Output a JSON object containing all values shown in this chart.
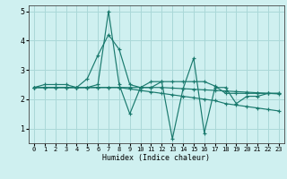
{
  "xlabel": "Humidex (Indice chaleur)",
  "bg_color": "#cff0f0",
  "grid_color": "#aad8d8",
  "line_color": "#1a7a6e",
  "xlim": [
    -0.5,
    23.5
  ],
  "ylim": [
    0.5,
    5.2
  ],
  "xticks": [
    0,
    1,
    2,
    3,
    4,
    5,
    6,
    7,
    8,
    9,
    10,
    11,
    12,
    13,
    14,
    15,
    16,
    17,
    18,
    19,
    20,
    21,
    22,
    23
  ],
  "yticks": [
    1,
    2,
    3,
    4,
    5
  ],
  "lines": [
    [
      2.4,
      2.5,
      2.5,
      2.5,
      2.4,
      2.7,
      3.5,
      4.2,
      3.7,
      2.5,
      2.4,
      2.4,
      2.6,
      0.65,
      2.35,
      3.4,
      0.85,
      2.4,
      2.4,
      1.85,
      2.1,
      2.1,
      2.2,
      2.2
    ],
    [
      2.4,
      2.4,
      2.4,
      2.4,
      2.4,
      2.4,
      2.5,
      5.0,
      2.5,
      1.5,
      2.4,
      2.6,
      2.6,
      2.6,
      2.6,
      2.6,
      2.6,
      2.45,
      2.2,
      2.2,
      2.2,
      2.2,
      2.2,
      2.2
    ],
    [
      2.4,
      2.4,
      2.4,
      2.4,
      2.4,
      2.4,
      2.4,
      2.4,
      2.4,
      2.35,
      2.3,
      2.25,
      2.2,
      2.15,
      2.1,
      2.05,
      2.0,
      1.95,
      1.85,
      1.8,
      1.75,
      1.7,
      1.65,
      1.6
    ],
    [
      2.4,
      2.4,
      2.4,
      2.4,
      2.4,
      2.4,
      2.4,
      2.4,
      2.4,
      2.4,
      2.4,
      2.4,
      2.4,
      2.38,
      2.36,
      2.34,
      2.32,
      2.3,
      2.28,
      2.26,
      2.24,
      2.22,
      2.2,
      2.18
    ]
  ]
}
